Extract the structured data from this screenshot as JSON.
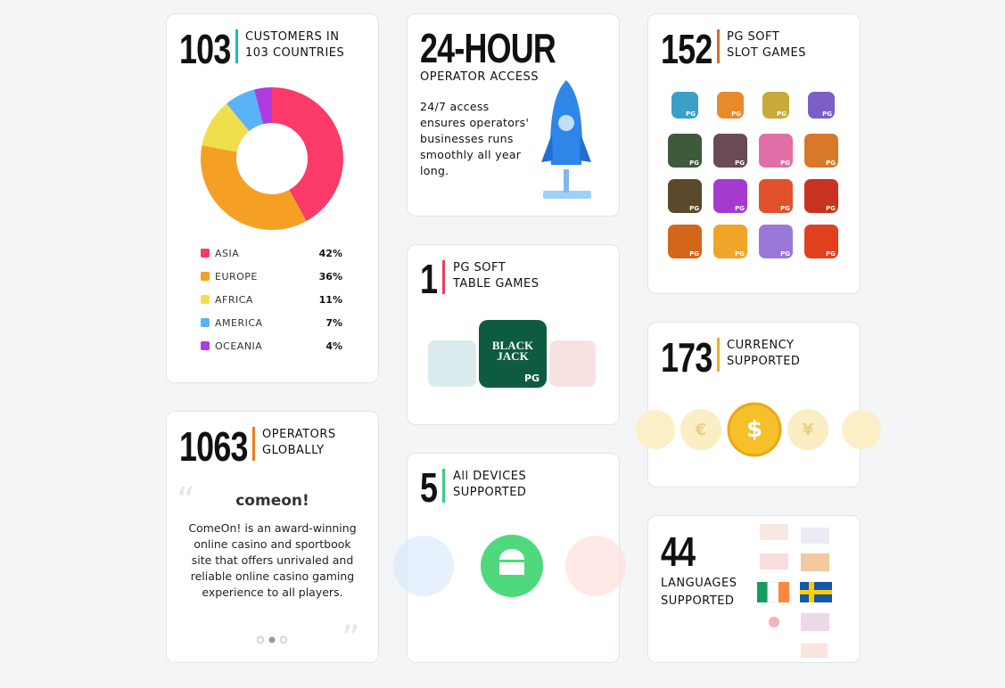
{
  "customers": {
    "number": "103",
    "label": [
      "CUSTOMERS IN",
      "103 COUNTRIES"
    ],
    "regions": {
      "type": "pie",
      "categories": [
        "ASIA",
        "EUROPE",
        "AFRICA",
        "AMERICA",
        "OCEANIA"
      ],
      "values": [
        42,
        36,
        11,
        7,
        4
      ],
      "value_labels": [
        "42%",
        "36%",
        "11%",
        "7%",
        "4%"
      ],
      "colors": [
        "#fb3a68",
        "#f5a024",
        "#f0df4c",
        "#5ab3f7",
        "#b03be0"
      ]
    }
  },
  "access": {
    "number": "24-HOUR",
    "label": "OPERATOR ACCESS",
    "text": "24/7 access ensures operators' businesses runs smoothly all year long."
  },
  "table_games": {
    "number": "1",
    "label": [
      "PG SOFT",
      "TABLE GAMES"
    ],
    "icon_title": [
      "BLACK",
      "JACK"
    ],
    "badge": "PG"
  },
  "devices": {
    "number": "5",
    "label": [
      "All DEVICES",
      "SUPPORTED"
    ]
  },
  "slot_games": {
    "number": "152",
    "label": [
      "PG SOFT",
      "SLOT GAMES"
    ],
    "badge": "PG"
  },
  "currency": {
    "number": "173",
    "label": [
      "CURRENCY",
      "SUPPORTED"
    ],
    "symbols": [
      "€",
      "$",
      "¥"
    ]
  },
  "languages": {
    "number": "44",
    "label": [
      "LANGUAGES",
      "SUPPORTED"
    ]
  },
  "operators": {
    "number": "1063",
    "label": [
      "OPERATORS",
      "GLOBALLY"
    ],
    "brand": "comeon!",
    "quote": "ComeOn! is an award-winning online casino and sportbook site that offers unrivaled and reliable online casino gaming experience to all players."
  }
}
